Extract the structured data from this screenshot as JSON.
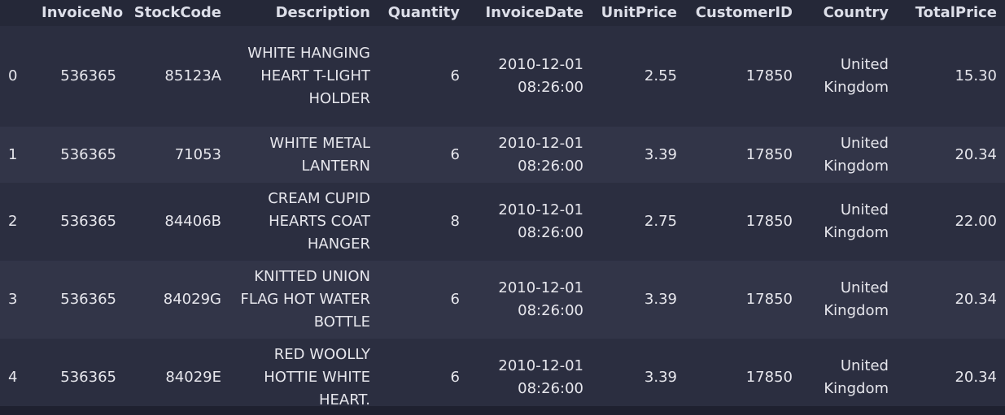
{
  "columns": [
    "",
    "InvoiceNo",
    "StockCode",
    "Description",
    "Quantity",
    "InvoiceDate",
    "UnitPrice",
    "CustomerID",
    "Country",
    "TotalPrice"
  ],
  "rows": [
    {
      "index": "0",
      "InvoiceNo": "536365",
      "StockCode": "85123A",
      "Description": "WHITE HANGING HEART T-LIGHT HOLDER",
      "Quantity": "6",
      "InvoiceDate": "2010-12-01 08:26:00",
      "UnitPrice": "2.55",
      "CustomerID": "17850",
      "Country": "United Kingdom",
      "TotalPrice": "15.30"
    },
    {
      "index": "1",
      "InvoiceNo": "536365",
      "StockCode": "71053",
      "Description": "WHITE METAL LANTERN",
      "Quantity": "6",
      "InvoiceDate": "2010-12-01 08:26:00",
      "UnitPrice": "3.39",
      "CustomerID": "17850",
      "Country": "United Kingdom",
      "TotalPrice": "20.34"
    },
    {
      "index": "2",
      "InvoiceNo": "536365",
      "StockCode": "84406B",
      "Description": "CREAM CUPID HEARTS COAT HANGER",
      "Quantity": "8",
      "InvoiceDate": "2010-12-01 08:26:00",
      "UnitPrice": "2.75",
      "CustomerID": "17850",
      "Country": "United Kingdom",
      "TotalPrice": "22.00"
    },
    {
      "index": "3",
      "InvoiceNo": "536365",
      "StockCode": "84029G",
      "Description": "KNITTED UNION FLAG HOT WATER BOTTLE",
      "Quantity": "6",
      "InvoiceDate": "2010-12-01 08:26:00",
      "UnitPrice": "3.39",
      "CustomerID": "17850",
      "Country": "United Kingdom",
      "TotalPrice": "20.34"
    },
    {
      "index": "4",
      "InvoiceNo": "536365",
      "StockCode": "84029E",
      "Description": "RED WOOLLY HOTTIE WHITE HEART.",
      "Quantity": "6",
      "InvoiceDate": "2010-12-01 08:26:00",
      "UnitPrice": "3.39",
      "CustomerID": "17850",
      "Country": "United Kingdom",
      "TotalPrice": "20.34"
    }
  ]
}
